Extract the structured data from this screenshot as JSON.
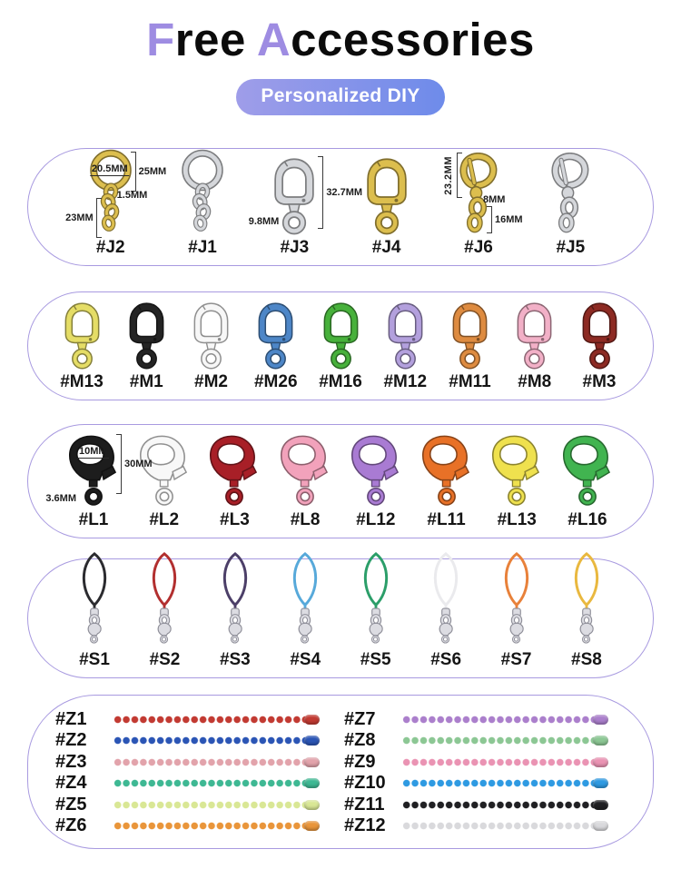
{
  "colors": {
    "accent": "#9e8ce2",
    "badge_from": "#9f9de9",
    "badge_to": "#6e8bea",
    "panel_border": "#a89ae0"
  },
  "header": {
    "title": {
      "accent1": "F",
      "rest1": "ree",
      "accent2": "A",
      "rest2": "ccessories"
    },
    "badge": "Personalized DIY"
  },
  "panels": [
    {
      "name": "key-rings",
      "item_type": "split-ring",
      "items": [
        {
          "label": "#J2",
          "type": "split-ring",
          "color": "#dcbe4e",
          "annotations": [
            {
              "text": "20.5MM",
              "slot": "inner-diameter"
            },
            {
              "text": "25MM",
              "slot": "height-right"
            },
            {
              "text": "1.5MM",
              "slot": "wire-top"
            },
            {
              "text": "23MM",
              "slot": "chain-left"
            }
          ]
        },
        {
          "label": "#J1",
          "type": "split-ring",
          "color": "#d5d7db"
        },
        {
          "label": "#J3",
          "type": "swivel-clasp",
          "color": "#d5d7db",
          "annotations": [
            {
              "text": "32.7MM",
              "slot": "height-right"
            },
            {
              "text": "9.8MM",
              "slot": "width-left"
            }
          ]
        },
        {
          "label": "#J4",
          "type": "swivel-clasp",
          "color": "#dcbe4e"
        },
        {
          "label": "#J6",
          "type": "trigger-hook",
          "color": "#dcbe4e",
          "annotations": [
            {
              "text": "23.2MM",
              "slot": "height-left-rotated"
            },
            {
              "text": "8MM",
              "slot": "mid-right"
            },
            {
              "text": "16MM",
              "slot": "lower-right"
            }
          ]
        },
        {
          "label": "#J5",
          "type": "trigger-hook",
          "color": "#d5d7db"
        }
      ]
    },
    {
      "name": "snap-hooks",
      "item_type": "swivel-clasp",
      "items": [
        {
          "label": "#M13",
          "color": "#e5dd66"
        },
        {
          "label": "#M1",
          "color": "#242424"
        },
        {
          "label": "#M2",
          "color": "#f7f7f7"
        },
        {
          "label": "#M26",
          "color": "#4d86c7"
        },
        {
          "label": "#M16",
          "color": "#47b13b"
        },
        {
          "label": "#M12",
          "color": "#b3a0dd"
        },
        {
          "label": "#M11",
          "color": "#de8b40"
        },
        {
          "label": "#M8",
          "color": "#f2b0c7"
        },
        {
          "label": "#M3",
          "color": "#8d2a23"
        }
      ]
    },
    {
      "name": "lobster-clasps",
      "item_type": "lobster-clasp",
      "items": [
        {
          "label": "#L1",
          "color": "#1d1d1d",
          "annotations": [
            {
              "text": "10MM",
              "slot": "inner-diameter"
            },
            {
              "text": "30MM",
              "slot": "height-right"
            },
            {
              "text": "3.6MM",
              "slot": "ring-left"
            }
          ]
        },
        {
          "label": "#L2",
          "color": "#f8f8f8"
        },
        {
          "label": "#L3",
          "color": "#a81f27"
        },
        {
          "label": "#L8",
          "color": "#f2a2bb"
        },
        {
          "label": "#L12",
          "color": "#a97bd3"
        },
        {
          "label": "#L11",
          "color": "#e87127"
        },
        {
          "label": "#L13",
          "color": "#efe14e"
        },
        {
          "label": "#L16",
          "color": "#41b450"
        }
      ]
    },
    {
      "name": "phone-straps",
      "item_type": "strap",
      "items": [
        {
          "label": "#S1",
          "color": "#2b2b2f"
        },
        {
          "label": "#S2",
          "color": "#b22f2f"
        },
        {
          "label": "#S3",
          "color": "#4c3f68"
        },
        {
          "label": "#S4",
          "color": "#57a9da"
        },
        {
          "label": "#S5",
          "color": "#2b9e69"
        },
        {
          "label": "#S6",
          "color": "#eaeaed"
        },
        {
          "label": "#S7",
          "color": "#e8813a"
        },
        {
          "label": "#S8",
          "color": "#e9b83f"
        }
      ]
    },
    {
      "name": "ball-chains",
      "item_type": "ball-chain",
      "columns": [
        [
          {
            "label": "#Z1",
            "color": "#c23a32"
          },
          {
            "label": "#Z2",
            "color": "#2b55b5"
          },
          {
            "label": "#Z3",
            "color": "#e2a3ab"
          },
          {
            "label": "#Z4",
            "color": "#3eb893"
          },
          {
            "label": "#Z5",
            "color": "#d9e795"
          },
          {
            "label": "#Z6",
            "color": "#e9953a"
          }
        ],
        [
          {
            "label": "#Z7",
            "color": "#ab7fcc"
          },
          {
            "label": "#Z8",
            "color": "#8cc794"
          },
          {
            "label": "#Z9",
            "color": "#ea93b3"
          },
          {
            "label": "#Z10",
            "color": "#2e9ae2"
          },
          {
            "label": "#Z11",
            "color": "#202023"
          },
          {
            "label": "#Z12",
            "color": "#d9d9dc"
          }
        ]
      ]
    }
  ]
}
